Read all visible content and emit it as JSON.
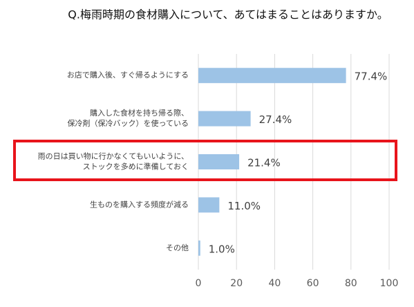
{
  "chart_data": {
    "type": "barh",
    "title": "Q.梅雨時期の食材購入について、あてはまることはありますか。",
    "categories": [
      [
        "お店で購入後、すぐ帰るようにする"
      ],
      [
        "購入した食材を持ち帰る際、",
        "保冷剤（保冷バック）を使っている"
      ],
      [
        "雨の日は買い物に行かなくてもいいように、",
        "ストックを多めに準備しておく"
      ],
      [
        "生ものを購入する頻度が減る"
      ],
      [
        "その他"
      ]
    ],
    "values": [
      77.4,
      27.4,
      21.4,
      11.0,
      1.0
    ],
    "value_labels": [
      "77.4%",
      "27.4%",
      "21.4%",
      "11.0%",
      "1.0%"
    ],
    "color": "#9dc3e6",
    "xlim": [
      0,
      100
    ],
    "xticks": [
      0,
      20,
      40,
      60,
      80,
      100
    ],
    "grid": true
  }
}
